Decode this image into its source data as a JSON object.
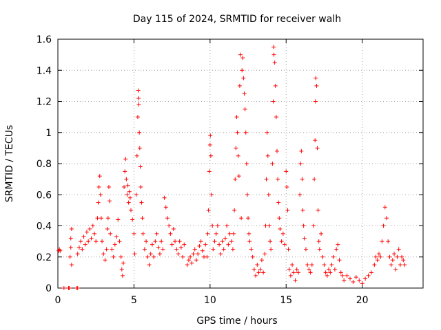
{
  "chart_data": {
    "type": "scatter",
    "title": "Day 115 of 2024, SRMTID for receiver walh",
    "xlabel": "GPS time / hours",
    "ylabel": "SRMTID / TECUs",
    "xlim": [
      0,
      24
    ],
    "ylim": [
      0,
      1.6
    ],
    "xticks": [
      0,
      5,
      10,
      15,
      20
    ],
    "xtick_labels": [
      "0",
      "5",
      "10",
      "15",
      "20"
    ],
    "yticks": [
      0,
      0.2,
      0.4,
      0.6,
      0.8,
      1.0,
      1.2,
      1.4,
      1.6
    ],
    "ytick_labels": [
      "0",
      "0.2",
      "0.4",
      "0.6",
      "0.8",
      "1",
      "1.2",
      "1.4",
      "1.6"
    ],
    "grid": true,
    "marker": "plus",
    "color": "#ff0000",
    "series": [
      {
        "name": "walh",
        "points": [
          [
            0.05,
            0.24
          ],
          [
            0.1,
            0.25
          ],
          [
            0.15,
            0.24
          ],
          [
            0.4,
            0
          ],
          [
            0.7,
            0
          ],
          [
            0.75,
            0
          ],
          [
            1.25,
            0
          ],
          [
            1.3,
            0
          ],
          [
            0.8,
            0.2
          ],
          [
            0.85,
            0.26
          ],
          [
            0.85,
            0.32
          ],
          [
            0.9,
            0.38
          ],
          [
            0.9,
            0.15
          ],
          [
            1.3,
            0.22
          ],
          [
            1.4,
            0.26
          ],
          [
            1.5,
            0.3
          ],
          [
            1.6,
            0.25
          ],
          [
            1.7,
            0.33
          ],
          [
            1.8,
            0.28
          ],
          [
            1.9,
            0.36
          ],
          [
            2.0,
            0.3
          ],
          [
            2.1,
            0.38
          ],
          [
            2.2,
            0.32
          ],
          [
            2.3,
            0.4
          ],
          [
            2.4,
            0.35
          ],
          [
            2.5,
            0.3
          ],
          [
            2.6,
            0.45
          ],
          [
            2.65,
            0.55
          ],
          [
            2.7,
            0.65
          ],
          [
            2.75,
            0.72
          ],
          [
            2.8,
            0.6
          ],
          [
            2.85,
            0.45
          ],
          [
            2.9,
            0.3
          ],
          [
            3.0,
            0.22
          ],
          [
            3.1,
            0.18
          ],
          [
            3.2,
            0.25
          ],
          [
            3.25,
            0.38
          ],
          [
            3.3,
            0.45
          ],
          [
            3.35,
            0.65
          ],
          [
            3.4,
            0.56
          ],
          [
            3.45,
            0.35
          ],
          [
            3.55,
            0.25
          ],
          [
            3.65,
            0.2
          ],
          [
            3.75,
            0.28
          ],
          [
            3.85,
            0.33
          ],
          [
            3.95,
            0.44
          ],
          [
            4.05,
            0.3
          ],
          [
            4.15,
            0.2
          ],
          [
            4.2,
            0.12
          ],
          [
            4.25,
            0.08
          ],
          [
            4.3,
            0.16
          ],
          [
            4.35,
            0.65
          ],
          [
            4.4,
            0.75
          ],
          [
            4.45,
            0.83
          ],
          [
            4.5,
            0.7
          ],
          [
            4.55,
            0.6
          ],
          [
            4.6,
            0.66
          ],
          [
            4.65,
            0.55
          ],
          [
            4.7,
            0.62
          ],
          [
            4.75,
            0.58
          ],
          [
            4.8,
            0.5
          ],
          [
            4.9,
            0.44
          ],
          [
            5.0,
            0.35
          ],
          [
            5.05,
            0.22
          ],
          [
            5.15,
            0.6
          ],
          [
            5.2,
            0.85
          ],
          [
            5.25,
            1.1
          ],
          [
            5.28,
            1.27
          ],
          [
            5.3,
            1.22
          ],
          [
            5.32,
            1.18
          ],
          [
            5.35,
            1.0
          ],
          [
            5.38,
            0.9
          ],
          [
            5.42,
            0.78
          ],
          [
            5.45,
            0.65
          ],
          [
            5.5,
            0.55
          ],
          [
            5.55,
            0.45
          ],
          [
            5.6,
            0.35
          ],
          [
            5.7,
            0.25
          ],
          [
            5.8,
            0.3
          ],
          [
            5.9,
            0.2
          ],
          [
            6.0,
            0.15
          ],
          [
            6.1,
            0.22
          ],
          [
            6.2,
            0.28
          ],
          [
            6.3,
            0.2
          ],
          [
            6.4,
            0.3
          ],
          [
            6.5,
            0.35
          ],
          [
            6.6,
            0.26
          ],
          [
            6.7,
            0.22
          ],
          [
            6.8,
            0.3
          ],
          [
            6.9,
            0.25
          ],
          [
            7.0,
            0.58
          ],
          [
            7.1,
            0.52
          ],
          [
            7.2,
            0.45
          ],
          [
            7.3,
            0.4
          ],
          [
            7.4,
            0.35
          ],
          [
            7.5,
            0.28
          ],
          [
            7.6,
            0.38
          ],
          [
            7.7,
            0.3
          ],
          [
            7.8,
            0.25
          ],
          [
            7.9,
            0.22
          ],
          [
            8.0,
            0.3
          ],
          [
            8.1,
            0.26
          ],
          [
            8.2,
            0.2
          ],
          [
            8.3,
            0.28
          ],
          [
            8.5,
            0.15
          ],
          [
            8.6,
            0.18
          ],
          [
            8.7,
            0.2
          ],
          [
            8.8,
            0.16
          ],
          [
            8.9,
            0.22
          ],
          [
            9.0,
            0.25
          ],
          [
            9.1,
            0.18
          ],
          [
            9.2,
            0.22
          ],
          [
            9.3,
            0.27
          ],
          [
            9.4,
            0.3
          ],
          [
            9.5,
            0.24
          ],
          [
            9.6,
            0.2
          ],
          [
            9.7,
            0.28
          ],
          [
            9.8,
            0.2
          ],
          [
            9.85,
            0.35
          ],
          [
            9.9,
            0.5
          ],
          [
            9.95,
            0.75
          ],
          [
            10.0,
            0.92
          ],
          [
            10.02,
            0.98
          ],
          [
            10.05,
            0.85
          ],
          [
            10.1,
            0.6
          ],
          [
            10.15,
            0.4
          ],
          [
            10.2,
            0.25
          ],
          [
            10.3,
            0.3
          ],
          [
            10.4,
            0.35
          ],
          [
            10.5,
            0.4
          ],
          [
            10.6,
            0.28
          ],
          [
            10.7,
            0.22
          ],
          [
            10.8,
            0.3
          ],
          [
            10.9,
            0.25
          ],
          [
            11.0,
            0.32
          ],
          [
            11.1,
            0.4
          ],
          [
            11.2,
            0.28
          ],
          [
            11.3,
            0.35
          ],
          [
            11.4,
            0.3
          ],
          [
            11.5,
            0.25
          ],
          [
            11.55,
            0.35
          ],
          [
            11.6,
            0.5
          ],
          [
            11.65,
            0.7
          ],
          [
            11.7,
            0.9
          ],
          [
            11.75,
            1.1
          ],
          [
            11.8,
            1.0
          ],
          [
            11.85,
            0.85
          ],
          [
            11.9,
            0.72
          ],
          [
            11.95,
            1.3
          ],
          [
            12.0,
            1.5
          ],
          [
            12.05,
            0.45
          ],
          [
            12.1,
            1.4
          ],
          [
            12.15,
            1.48
          ],
          [
            12.2,
            1.35
          ],
          [
            12.25,
            1.25
          ],
          [
            12.3,
            1.15
          ],
          [
            12.35,
            1.0
          ],
          [
            12.4,
            0.8
          ],
          [
            12.45,
            0.6
          ],
          [
            12.5,
            0.45
          ],
          [
            12.55,
            0.35
          ],
          [
            12.6,
            0.3
          ],
          [
            12.7,
            0.25
          ],
          [
            12.8,
            0.2
          ],
          [
            12.9,
            0.12
          ],
          [
            13.0,
            0.08
          ],
          [
            13.1,
            0.15
          ],
          [
            13.2,
            0.1
          ],
          [
            13.3,
            0.12
          ],
          [
            13.4,
            0.18
          ],
          [
            13.5,
            0.1
          ],
          [
            13.6,
            0.22
          ],
          [
            13.65,
            0.4
          ],
          [
            13.7,
            0.7
          ],
          [
            13.75,
            1.0
          ],
          [
            13.8,
            0.85
          ],
          [
            13.85,
            0.6
          ],
          [
            13.9,
            0.4
          ],
          [
            13.95,
            0.3
          ],
          [
            14.0,
            0.25
          ],
          [
            14.1,
            0.8
          ],
          [
            14.15,
            1.2
          ],
          [
            14.18,
            1.55
          ],
          [
            14.2,
            1.5
          ],
          [
            14.25,
            1.45
          ],
          [
            14.3,
            1.3
          ],
          [
            14.35,
            1.1
          ],
          [
            14.4,
            0.88
          ],
          [
            14.45,
            0.7
          ],
          [
            14.5,
            0.55
          ],
          [
            14.55,
            0.45
          ],
          [
            14.6,
            0.38
          ],
          [
            14.7,
            0.3
          ],
          [
            14.8,
            0.35
          ],
          [
            14.9,
            0.28
          ],
          [
            15.0,
            0.75
          ],
          [
            15.05,
            0.65
          ],
          [
            15.1,
            0.5
          ],
          [
            15.15,
            0.25
          ],
          [
            15.2,
            0.12
          ],
          [
            15.3,
            0.08
          ],
          [
            15.4,
            0.15
          ],
          [
            15.5,
            0.1
          ],
          [
            15.6,
            0.05
          ],
          [
            15.7,
            0.12
          ],
          [
            15.8,
            0.1
          ],
          [
            15.9,
            0.6
          ],
          [
            15.95,
            0.8
          ],
          [
            16.0,
            0.88
          ],
          [
            16.05,
            0.7
          ],
          [
            16.1,
            0.5
          ],
          [
            16.15,
            0.4
          ],
          [
            16.2,
            0.32
          ],
          [
            16.3,
            0.25
          ],
          [
            16.4,
            0.15
          ],
          [
            16.5,
            0.12
          ],
          [
            16.6,
            0.1
          ],
          [
            16.7,
            0.15
          ],
          [
            16.8,
            0.4
          ],
          [
            16.85,
            0.7
          ],
          [
            16.9,
            0.95
          ],
          [
            16.93,
            1.2
          ],
          [
            16.95,
            1.35
          ],
          [
            17.0,
            1.3
          ],
          [
            17.05,
            0.9
          ],
          [
            17.1,
            0.5
          ],
          [
            17.15,
            0.3
          ],
          [
            17.2,
            0.25
          ],
          [
            17.3,
            0.35
          ],
          [
            17.4,
            0.2
          ],
          [
            17.5,
            0.15
          ],
          [
            17.6,
            0.1
          ],
          [
            17.7,
            0.08
          ],
          [
            17.8,
            0.12
          ],
          [
            17.9,
            0.1
          ],
          [
            18.0,
            0.15
          ],
          [
            18.1,
            0.2
          ],
          [
            18.2,
            0.12
          ],
          [
            18.3,
            0.25
          ],
          [
            18.4,
            0.28
          ],
          [
            18.5,
            0.18
          ],
          [
            18.6,
            0.1
          ],
          [
            18.7,
            0.08
          ],
          [
            18.8,
            0.05
          ],
          [
            19.0,
            0.08
          ],
          [
            19.2,
            0.06
          ],
          [
            19.4,
            0.04
          ],
          [
            19.6,
            0.07
          ],
          [
            19.8,
            0.05
          ],
          [
            20.0,
            0.03
          ],
          [
            20.2,
            0.06
          ],
          [
            20.4,
            0.08
          ],
          [
            20.6,
            0.1
          ],
          [
            20.8,
            0.15
          ],
          [
            20.9,
            0.2
          ],
          [
            21.0,
            0.18
          ],
          [
            21.1,
            0.22
          ],
          [
            21.2,
            0.2
          ],
          [
            21.3,
            0.3
          ],
          [
            21.4,
            0.4
          ],
          [
            21.5,
            0.52
          ],
          [
            21.6,
            0.45
          ],
          [
            21.7,
            0.3
          ],
          [
            21.8,
            0.2
          ],
          [
            21.9,
            0.15
          ],
          [
            22.0,
            0.18
          ],
          [
            22.1,
            0.22
          ],
          [
            22.2,
            0.12
          ],
          [
            22.3,
            0.2
          ],
          [
            22.4,
            0.25
          ],
          [
            22.5,
            0.15
          ],
          [
            22.6,
            0.2
          ],
          [
            22.7,
            0.18
          ],
          [
            22.8,
            0.15
          ]
        ]
      }
    ]
  }
}
